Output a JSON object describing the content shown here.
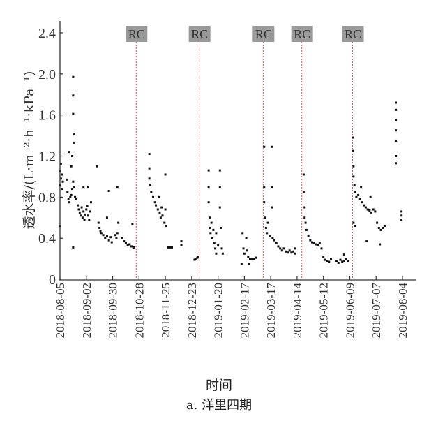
{
  "chart_data": {
    "type": "scatter",
    "ylabel": "透水率/(L·m⁻²·h⁻¹·kPa⁻¹)",
    "xlabel": "时间",
    "caption": "a. 洋里四期",
    "ylim": [
      0,
      2.4
    ],
    "yticks": [
      "0",
      "0.4",
      "0.8",
      "1.2",
      "1.6",
      "2.0",
      "2.4"
    ],
    "xlim": [
      "2018-08-05",
      "2019-08-04"
    ],
    "xticks": [
      "2018-08-05",
      "2018-09-02",
      "2018-09-30",
      "2018-10-28",
      "2018-11-25",
      "2018-12-23",
      "2019-01-20",
      "2019-02-17",
      "2019-03-17",
      "2019-04-14",
      "2019-05-12",
      "2019-06-09",
      "2019-07-07",
      "2019-08-04"
    ],
    "grid": false,
    "marker_color": "#111111",
    "rc_line_color": "#e0605a",
    "rc_box_color": "#9a9a9a",
    "rc_events": [
      {
        "label": "RC",
        "date": "2018-10-25"
      },
      {
        "label": "RC",
        "date": "2018-12-31"
      },
      {
        "label": "RC",
        "date": "2019-03-09"
      },
      {
        "label": "RC",
        "date": "2019-04-19"
      },
      {
        "label": "RC",
        "date": "2019-06-12"
      }
    ],
    "points": [
      [
        "2018-08-05",
        1.05
      ],
      [
        "2018-08-05",
        0.92
      ],
      [
        "2018-08-06",
        1.12
      ],
      [
        "2018-08-06",
        0.98
      ],
      [
        "2018-08-07",
        0.88
      ],
      [
        "2018-08-07",
        1.02
      ],
      [
        "2018-08-08",
        0.95
      ],
      [
        "2018-08-05",
        0.52
      ],
      [
        "2018-08-12",
        0.97
      ],
      [
        "2018-08-13",
        0.85
      ],
      [
        "2018-08-14",
        0.78
      ],
      [
        "2018-08-15",
        0.75
      ],
      [
        "2018-08-16",
        0.8
      ],
      [
        "2018-08-17",
        0.82
      ],
      [
        "2018-08-18",
        0.88
      ],
      [
        "2018-08-19",
        0.95
      ],
      [
        "2018-08-20",
        0.9
      ],
      [
        "2018-08-21",
        0.8
      ],
      [
        "2018-08-22",
        0.78
      ],
      [
        "2018-08-15",
        1.24
      ],
      [
        "2018-08-18",
        1.2
      ],
      [
        "2018-08-19",
        1.97
      ],
      [
        "2018-08-19",
        1.79
      ],
      [
        "2018-08-19",
        1.61
      ],
      [
        "2018-08-20",
        1.41
      ],
      [
        "2018-08-20",
        1.33
      ],
      [
        "2018-08-19",
        0.31
      ],
      [
        "2018-08-17",
        1.1
      ],
      [
        "2018-08-24",
        0.72
      ],
      [
        "2018-08-25",
        0.68
      ],
      [
        "2018-08-26",
        0.65
      ],
      [
        "2018-08-27",
        0.62
      ],
      [
        "2018-08-28",
        0.7
      ],
      [
        "2018-08-29",
        0.6
      ],
      [
        "2018-08-30",
        0.66
      ],
      [
        "2018-08-31",
        0.58
      ],
      [
        "2018-09-01",
        0.63
      ],
      [
        "2018-09-02",
        0.68
      ],
      [
        "2018-09-03",
        0.71
      ],
      [
        "2018-09-04",
        0.62
      ],
      [
        "2018-09-05",
        0.58
      ],
      [
        "2018-09-06",
        0.66
      ],
      [
        "2018-09-07",
        0.75
      ],
      [
        "2018-09-04",
        0.9
      ],
      [
        "2018-08-30",
        0.9
      ],
      [
        "2018-09-13",
        1.1
      ],
      [
        "2018-09-15",
        0.55
      ],
      [
        "2018-09-16",
        0.5
      ],
      [
        "2018-09-17",
        0.47
      ],
      [
        "2018-09-18",
        0.45
      ],
      [
        "2018-09-20",
        0.43
      ],
      [
        "2018-09-22",
        0.4
      ],
      [
        "2018-09-24",
        0.42
      ],
      [
        "2018-09-26",
        0.38
      ],
      [
        "2018-09-28",
        0.41
      ],
      [
        "2018-09-29",
        0.36
      ],
      [
        "2018-09-24",
        0.6
      ],
      [
        "2018-09-26",
        0.86
      ],
      [
        "2018-10-03",
        0.43
      ],
      [
        "2018-10-04",
        0.4
      ],
      [
        "2018-10-05",
        0.45
      ],
      [
        "2018-10-05",
        0.9
      ],
      [
        "2018-10-06",
        0.55
      ],
      [
        "2018-10-10",
        0.4
      ],
      [
        "2018-10-12",
        0.37
      ],
      [
        "2018-10-14",
        0.35
      ],
      [
        "2018-10-16",
        0.33
      ],
      [
        "2018-10-18",
        0.34
      ],
      [
        "2018-10-20",
        0.32
      ],
      [
        "2018-10-22",
        0.31
      ],
      [
        "2018-10-23",
        0.31
      ],
      [
        "2018-10-21",
        0.54
      ],
      [
        "2018-11-08",
        1.22
      ],
      [
        "2018-11-08",
        1.08
      ],
      [
        "2018-11-08",
        0.98
      ],
      [
        "2018-11-09",
        0.92
      ],
      [
        "2018-11-10",
        0.85
      ],
      [
        "2018-11-12",
        0.8
      ],
      [
        "2018-11-14",
        0.75
      ],
      [
        "2018-11-15",
        0.72
      ],
      [
        "2018-11-17",
        0.68
      ],
      [
        "2018-11-18",
        0.8
      ],
      [
        "2018-11-19",
        0.65
      ],
      [
        "2018-11-20",
        0.6
      ],
      [
        "2018-11-21",
        0.7
      ],
      [
        "2018-11-22",
        0.62
      ],
      [
        "2018-11-24",
        0.55
      ],
      [
        "2018-11-25",
        0.68
      ],
      [
        "2018-11-26",
        0.52
      ],
      [
        "2018-11-25",
        1.02
      ],
      [
        "2018-11-28",
        0.31
      ],
      [
        "2018-11-30",
        0.31
      ],
      [
        "2018-12-02",
        0.31
      ],
      [
        "2018-12-12",
        0.37
      ],
      [
        "2018-12-12",
        0.33
      ],
      [
        "2018-12-26",
        0.19
      ],
      [
        "2018-12-27",
        0.2
      ],
      [
        "2018-12-29",
        0.21
      ],
      [
        "2018-12-30",
        0.22
      ],
      [
        "2019-01-10",
        1.06
      ],
      [
        "2019-01-10",
        0.9
      ],
      [
        "2019-01-10",
        0.75
      ],
      [
        "2019-01-11",
        0.6
      ],
      [
        "2019-01-11",
        0.5
      ],
      [
        "2019-01-12",
        0.45
      ],
      [
        "2019-01-13",
        0.55
      ],
      [
        "2019-01-14",
        0.4
      ],
      [
        "2019-01-15",
        0.48
      ],
      [
        "2019-01-16",
        0.35
      ],
      [
        "2019-01-17",
        0.3
      ],
      [
        "2019-01-18",
        0.25
      ],
      [
        "2019-01-18",
        0.45
      ],
      [
        "2019-01-20",
        0.33
      ],
      [
        "2019-01-22",
        1.06
      ],
      [
        "2019-01-22",
        0.9
      ],
      [
        "2019-01-22",
        0.7
      ],
      [
        "2019-01-23",
        0.5
      ],
      [
        "2019-01-24",
        0.3
      ],
      [
        "2019-01-25",
        0.25
      ],
      [
        "2019-02-14",
        0.15
      ],
      [
        "2019-02-15",
        0.45
      ],
      [
        "2019-02-16",
        0.3
      ],
      [
        "2019-02-17",
        0.25
      ],
      [
        "2019-02-19",
        0.4
      ],
      [
        "2019-02-20",
        0.28
      ],
      [
        "2019-02-21",
        0.22
      ],
      [
        "2019-02-22",
        0.15
      ],
      [
        "2019-02-23",
        0.2
      ],
      [
        "2019-02-25",
        0.2
      ],
      [
        "2019-02-27",
        0.2
      ],
      [
        "2019-03-01",
        0.21
      ],
      [
        "2019-03-10",
        1.29
      ],
      [
        "2019-03-10",
        0.9
      ],
      [
        "2019-03-10",
        0.75
      ],
      [
        "2019-03-11",
        0.6
      ],
      [
        "2019-03-12",
        0.5
      ],
      [
        "2019-03-13",
        0.45
      ],
      [
        "2019-03-14",
        0.55
      ],
      [
        "2019-03-16",
        0.42
      ],
      [
        "2019-03-18",
        1.29
      ],
      [
        "2019-03-18",
        0.9
      ],
      [
        "2019-03-18",
        0.7
      ],
      [
        "2019-03-19",
        0.4
      ],
      [
        "2019-03-21",
        0.38
      ],
      [
        "2019-03-23",
        0.35
      ],
      [
        "2019-03-25",
        0.32
      ],
      [
        "2019-03-27",
        0.3
      ],
      [
        "2019-03-29",
        0.28
      ],
      [
        "2019-03-31",
        0.3
      ],
      [
        "2019-04-02",
        0.27
      ],
      [
        "2019-04-04",
        0.26
      ],
      [
        "2019-04-06",
        0.28
      ],
      [
        "2019-04-08",
        0.26
      ],
      [
        "2019-04-10",
        0.27
      ],
      [
        "2019-04-12",
        0.3
      ],
      [
        "2019-04-12",
        0.25
      ],
      [
        "2019-04-21",
        1.02
      ],
      [
        "2019-04-21",
        0.85
      ],
      [
        "2019-04-22",
        0.7
      ],
      [
        "2019-04-22",
        0.6
      ],
      [
        "2019-04-23",
        0.55
      ],
      [
        "2019-04-24",
        0.48
      ],
      [
        "2019-04-26",
        0.42
      ],
      [
        "2019-04-28",
        0.38
      ],
      [
        "2019-04-30",
        0.36
      ],
      [
        "2019-05-02",
        0.35
      ],
      [
        "2019-05-04",
        0.34
      ],
      [
        "2019-05-06",
        0.33
      ],
      [
        "2019-05-08",
        0.35
      ],
      [
        "2019-05-10",
        0.3
      ],
      [
        "2019-05-12",
        0.22
      ],
      [
        "2019-05-14",
        0.19
      ],
      [
        "2019-05-16",
        0.18
      ],
      [
        "2019-05-18",
        0.17
      ],
      [
        "2019-05-20",
        0.2
      ],
      [
        "2019-05-26",
        0.18
      ],
      [
        "2019-05-28",
        0.16
      ],
      [
        "2019-05-30",
        0.19
      ],
      [
        "2019-06-01",
        0.17
      ],
      [
        "2019-06-03",
        0.18
      ],
      [
        "2019-06-05",
        0.2
      ],
      [
        "2019-06-07",
        0.18
      ],
      [
        "2019-06-03",
        0.24
      ],
      [
        "2019-06-12",
        1.38
      ],
      [
        "2019-06-12",
        1.25
      ],
      [
        "2019-06-13",
        1.1
      ],
      [
        "2019-06-13",
        1.0
      ],
      [
        "2019-06-14",
        0.92
      ],
      [
        "2019-06-15",
        0.85
      ],
      [
        "2019-06-16",
        0.8
      ],
      [
        "2019-06-18",
        0.82
      ],
      [
        "2019-06-20",
        0.78
      ],
      [
        "2019-06-21",
        0.9
      ],
      [
        "2019-06-22",
        0.75
      ],
      [
        "2019-06-24",
        0.72
      ],
      [
        "2019-06-26",
        0.7
      ],
      [
        "2019-06-28",
        0.68
      ],
      [
        "2019-06-30",
        0.67
      ],
      [
        "2019-07-02",
        0.65
      ],
      [
        "2019-07-04",
        0.68
      ],
      [
        "2019-07-06",
        0.66
      ],
      [
        "2019-06-13",
        0.55
      ],
      [
        "2019-06-15",
        0.52
      ],
      [
        "2019-06-27",
        0.37
      ],
      [
        "2019-07-01",
        0.8
      ],
      [
        "2019-07-08",
        0.55
      ],
      [
        "2019-07-10",
        0.5
      ],
      [
        "2019-07-12",
        0.48
      ],
      [
        "2019-07-14",
        0.5
      ],
      [
        "2019-07-16",
        0.52
      ],
      [
        "2019-07-11",
        0.34
      ],
      [
        "2019-07-28",
        1.72
      ],
      [
        "2019-07-28",
        1.65
      ],
      [
        "2019-07-28",
        1.55
      ],
      [
        "2019-07-28",
        1.45
      ],
      [
        "2019-07-28",
        1.35
      ],
      [
        "2019-07-28",
        1.2
      ],
      [
        "2019-07-28",
        1.13
      ],
      [
        "2019-08-03",
        0.58
      ],
      [
        "2019-08-03",
        0.62
      ],
      [
        "2019-08-03",
        0.66
      ]
    ]
  }
}
